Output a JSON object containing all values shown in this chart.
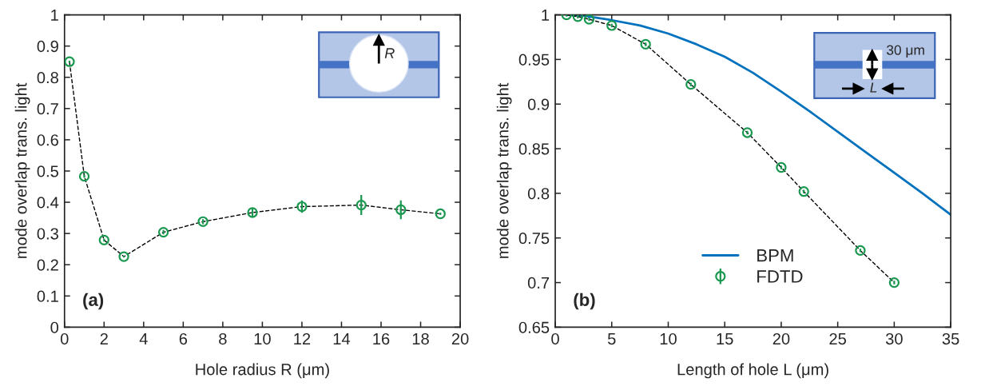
{
  "chart_data": [
    {
      "type": "scatter",
      "xlabel": "Hole radius R (μm)",
      "ylabel": "mode overlap trans. light",
      "xlim": [
        0,
        20
      ],
      "xticks": [
        0,
        2,
        4,
        6,
        8,
        10,
        12,
        14,
        16,
        18,
        20
      ],
      "ylim": [
        0,
        1
      ],
      "yticks": [
        0,
        0.1,
        0.2,
        0.3,
        0.4,
        0.5,
        0.6,
        0.7,
        0.8,
        0.9,
        1
      ],
      "annotations": [
        "(a)",
        "R"
      ],
      "series": [
        {
          "type": "line",
          "color": "#000000",
          "line_style": "dashed",
          "marker": "none",
          "x": [
            0.25,
            1,
            2,
            3,
            5,
            7,
            9.5,
            12,
            15,
            17,
            19
          ],
          "values": [
            0.85,
            0.483,
            0.279,
            0.226,
            0.304,
            0.338,
            0.367,
            0.386,
            0.391,
            0.376,
            0.363
          ]
        },
        {
          "color": "#1a9850",
          "marker": "circle",
          "x": [
            0.25,
            1,
            2,
            3,
            5,
            7,
            9.5,
            12,
            15,
            17,
            19
          ],
          "values": [
            0.85,
            0.483,
            0.279,
            0.226,
            0.304,
            0.338,
            0.367,
            0.386,
            0.391,
            0.376,
            0.363
          ],
          "errors": [
            0.003,
            0.005,
            0.005,
            0.003,
            0.007,
            0.008,
            0.015,
            0.02,
            0.032,
            0.03,
            0.004
          ]
        }
      ]
    },
    {
      "type": "line",
      "xlabel": "Length of hole L (μm)",
      "ylabel": "mode overlap trans. light",
      "xlim": [
        0,
        35
      ],
      "xticks": [
        0,
        5,
        10,
        15,
        20,
        25,
        30,
        35
      ],
      "ylim": [
        0.65,
        1
      ],
      "yticks": [
        0.65,
        0.7,
        0.75,
        0.8,
        0.85,
        0.9,
        0.95,
        1
      ],
      "legend": "bottom",
      "annotations": [
        "(b)",
        "30 μm",
        "L"
      ],
      "series": [
        {
          "name": "BPM",
          "color": "#0072bd",
          "line_style": "solid",
          "marker": "none",
          "x": [
            1,
            2.5,
            5,
            7.5,
            10,
            12.5,
            15,
            17.5,
            20,
            22.5,
            25,
            27.5,
            30,
            32.5,
            35
          ],
          "values": [
            1,
            0.999,
            0.994,
            0.988,
            0.979,
            0.967,
            0.953,
            0.935,
            0.914,
            0.892,
            0.869,
            0.846,
            0.823,
            0.8,
            0.776
          ]
        },
        {
          "color": "#000000",
          "line_style": "dashed",
          "marker": "none",
          "x": [
            1,
            2,
            3,
            5,
            8,
            12,
            17,
            20,
            22,
            27,
            30
          ],
          "values": [
            1,
            0.998,
            0.995,
            0.988,
            0.967,
            0.922,
            0.868,
            0.829,
            0.802,
            0.736,
            0.7
          ]
        },
        {
          "name": "FDTD",
          "type": "scatter",
          "color": "#1a9850",
          "marker": "circle",
          "x": [
            1,
            2,
            3,
            5,
            8,
            12,
            17,
            20,
            22,
            27,
            30
          ],
          "values": [
            1,
            0.998,
            0.995,
            0.988,
            0.967,
            0.922,
            0.868,
            0.829,
            0.802,
            0.736,
            0.7
          ],
          "errors": [
            0.002,
            0.002,
            0.002,
            0.002,
            0.002,
            0.002,
            0.002,
            0.002,
            0.002,
            0.002,
            0.002
          ]
        }
      ]
    }
  ]
}
